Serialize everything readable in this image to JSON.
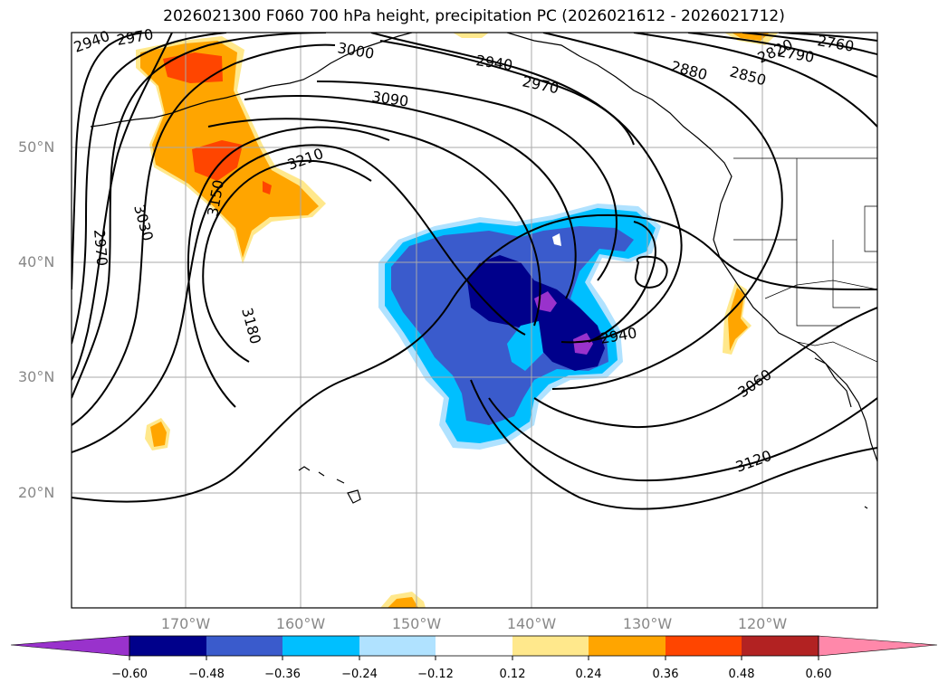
{
  "title": "2026021300 F060 700 hPa height, precipitation PC (2026021612 - 2026021712)",
  "lat_labels": [
    "50°N",
    "40°N",
    "30°N",
    "20°N"
  ],
  "lon_labels": [
    "170°W",
    "160°W",
    "150°W",
    "140°W",
    "130°W",
    "120°W"
  ],
  "contour_labels": [
    "2940",
    "2970",
    "3000",
    "2940",
    "2970",
    "3090",
    "2880",
    "2850",
    "2820",
    "2790",
    "2760",
    "3210",
    "3150",
    "3030",
    "2970",
    "3180",
    "2940",
    "3060",
    "3120"
  ],
  "colorbar": {
    "ticks": [
      "−0.60",
      "−0.48",
      "−0.36",
      "−0.24",
      "−0.12",
      "0.12",
      "0.24",
      "0.36",
      "0.48",
      "0.60"
    ],
    "colors": [
      "#9932cc",
      "#00008b",
      "#3a5bcc",
      "#00bfff",
      "#b0e2ff",
      "#ffffff",
      "#ffe88c",
      "#ffa500",
      "#ff4500",
      "#b22222",
      "#ff88aa"
    ]
  }
}
